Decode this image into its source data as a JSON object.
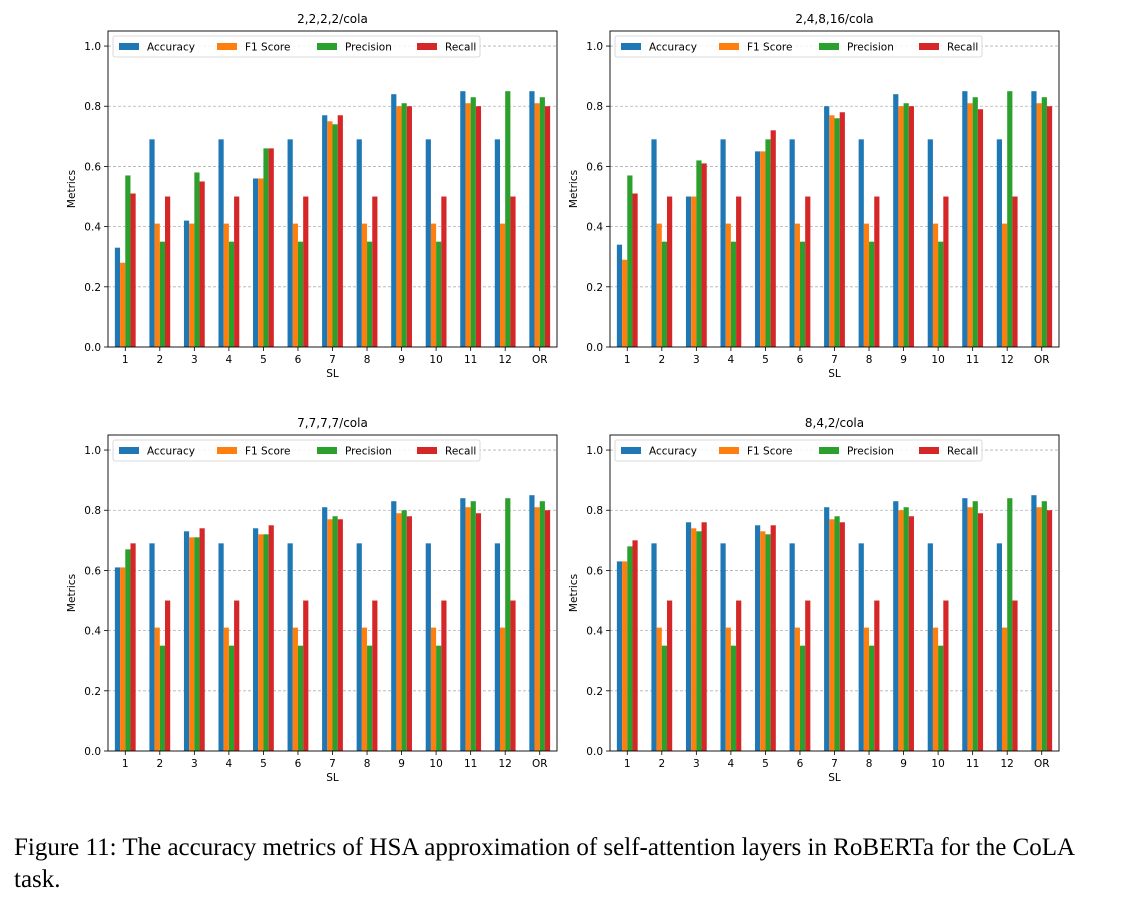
{
  "figure": {
    "caption": "Figure 11: The accuracy metrics of HSA approximation of self-attention layers in RoBERTa for the CoLA task.",
    "colors": {
      "Accuracy": "#1f77b4",
      "F1 Score": "#ff7f0e",
      "Precision": "#2ca02c",
      "Recall": "#d62728"
    }
  },
  "chart_data": [
    {
      "type": "bar",
      "title": "2,2,2,2/cola",
      "xlabel": "SL",
      "ylabel": "Metrics",
      "ylim": [
        0,
        1.05
      ],
      "yticks": [
        "0.0",
        "0.2",
        "0.4",
        "0.6",
        "0.8",
        "1.0"
      ],
      "grid": "y-dashed",
      "legend": "top",
      "categories": [
        "1",
        "2",
        "3",
        "4",
        "5",
        "6",
        "7",
        "8",
        "9",
        "10",
        "11",
        "12",
        "OR"
      ],
      "series": [
        {
          "name": "Accuracy",
          "values": [
            0.33,
            0.69,
            0.42,
            0.69,
            0.56,
            0.69,
            0.77,
            0.69,
            0.84,
            0.69,
            0.85,
            0.69,
            0.85
          ]
        },
        {
          "name": "F1 Score",
          "values": [
            0.28,
            0.41,
            0.41,
            0.41,
            0.56,
            0.41,
            0.75,
            0.41,
            0.8,
            0.41,
            0.81,
            0.41,
            0.81
          ]
        },
        {
          "name": "Precision",
          "values": [
            0.57,
            0.35,
            0.58,
            0.35,
            0.66,
            0.35,
            0.74,
            0.35,
            0.81,
            0.35,
            0.83,
            0.85,
            0.83
          ]
        },
        {
          "name": "Recall",
          "values": [
            0.51,
            0.5,
            0.55,
            0.5,
            0.66,
            0.5,
            0.77,
            0.5,
            0.8,
            0.5,
            0.8,
            0.5,
            0.8
          ]
        }
      ]
    },
    {
      "type": "bar",
      "title": "2,4,8,16/cola",
      "xlabel": "SL",
      "ylabel": "Metrics",
      "ylim": [
        0,
        1.05
      ],
      "yticks": [
        "0.0",
        "0.2",
        "0.4",
        "0.6",
        "0.8",
        "1.0"
      ],
      "grid": "y-dashed",
      "legend": "top",
      "categories": [
        "1",
        "2",
        "3",
        "4",
        "5",
        "6",
        "7",
        "8",
        "9",
        "10",
        "11",
        "12",
        "OR"
      ],
      "series": [
        {
          "name": "Accuracy",
          "values": [
            0.34,
            0.69,
            0.5,
            0.69,
            0.65,
            0.69,
            0.8,
            0.69,
            0.84,
            0.69,
            0.85,
            0.69,
            0.85
          ]
        },
        {
          "name": "F1 Score",
          "values": [
            0.29,
            0.41,
            0.5,
            0.41,
            0.65,
            0.41,
            0.77,
            0.41,
            0.8,
            0.41,
            0.81,
            0.41,
            0.81
          ]
        },
        {
          "name": "Precision",
          "values": [
            0.57,
            0.35,
            0.62,
            0.35,
            0.69,
            0.35,
            0.76,
            0.35,
            0.81,
            0.35,
            0.83,
            0.85,
            0.83
          ]
        },
        {
          "name": "Recall",
          "values": [
            0.51,
            0.5,
            0.61,
            0.5,
            0.72,
            0.5,
            0.78,
            0.5,
            0.8,
            0.5,
            0.79,
            0.5,
            0.8
          ]
        }
      ]
    },
    {
      "type": "bar",
      "title": "7,7,7,7/cola",
      "xlabel": "SL",
      "ylabel": "Metrics",
      "ylim": [
        0,
        1.05
      ],
      "yticks": [
        "0.0",
        "0.2",
        "0.4",
        "0.6",
        "0.8",
        "1.0"
      ],
      "grid": "y-dashed",
      "legend": "top",
      "categories": [
        "1",
        "2",
        "3",
        "4",
        "5",
        "6",
        "7",
        "8",
        "9",
        "10",
        "11",
        "12",
        "OR"
      ],
      "series": [
        {
          "name": "Accuracy",
          "values": [
            0.61,
            0.69,
            0.73,
            0.69,
            0.74,
            0.69,
            0.81,
            0.69,
            0.83,
            0.69,
            0.84,
            0.69,
            0.85
          ]
        },
        {
          "name": "F1 Score",
          "values": [
            0.61,
            0.41,
            0.71,
            0.41,
            0.72,
            0.41,
            0.77,
            0.41,
            0.79,
            0.41,
            0.81,
            0.41,
            0.81
          ]
        },
        {
          "name": "Precision",
          "values": [
            0.67,
            0.35,
            0.71,
            0.35,
            0.72,
            0.35,
            0.78,
            0.35,
            0.8,
            0.35,
            0.83,
            0.84,
            0.83
          ]
        },
        {
          "name": "Recall",
          "values": [
            0.69,
            0.5,
            0.74,
            0.5,
            0.75,
            0.5,
            0.77,
            0.5,
            0.78,
            0.5,
            0.79,
            0.5,
            0.8
          ]
        }
      ]
    },
    {
      "type": "bar",
      "title": "8,4,2/cola",
      "xlabel": "SL",
      "ylabel": "Metrics",
      "ylim": [
        0,
        1.05
      ],
      "yticks": [
        "0.0",
        "0.2",
        "0.4",
        "0.6",
        "0.8",
        "1.0"
      ],
      "grid": "y-dashed",
      "legend": "top",
      "categories": [
        "1",
        "2",
        "3",
        "4",
        "5",
        "6",
        "7",
        "8",
        "9",
        "10",
        "11",
        "12",
        "OR"
      ],
      "series": [
        {
          "name": "Accuracy",
          "values": [
            0.63,
            0.69,
            0.76,
            0.69,
            0.75,
            0.69,
            0.81,
            0.69,
            0.83,
            0.69,
            0.84,
            0.69,
            0.85
          ]
        },
        {
          "name": "F1 Score",
          "values": [
            0.63,
            0.41,
            0.74,
            0.41,
            0.73,
            0.41,
            0.77,
            0.41,
            0.8,
            0.41,
            0.81,
            0.41,
            0.81
          ]
        },
        {
          "name": "Precision",
          "values": [
            0.68,
            0.35,
            0.73,
            0.35,
            0.72,
            0.35,
            0.78,
            0.35,
            0.81,
            0.35,
            0.83,
            0.84,
            0.83
          ]
        },
        {
          "name": "Recall",
          "values": [
            0.7,
            0.5,
            0.76,
            0.5,
            0.75,
            0.5,
            0.76,
            0.5,
            0.78,
            0.5,
            0.79,
            0.5,
            0.8
          ]
        }
      ]
    }
  ]
}
